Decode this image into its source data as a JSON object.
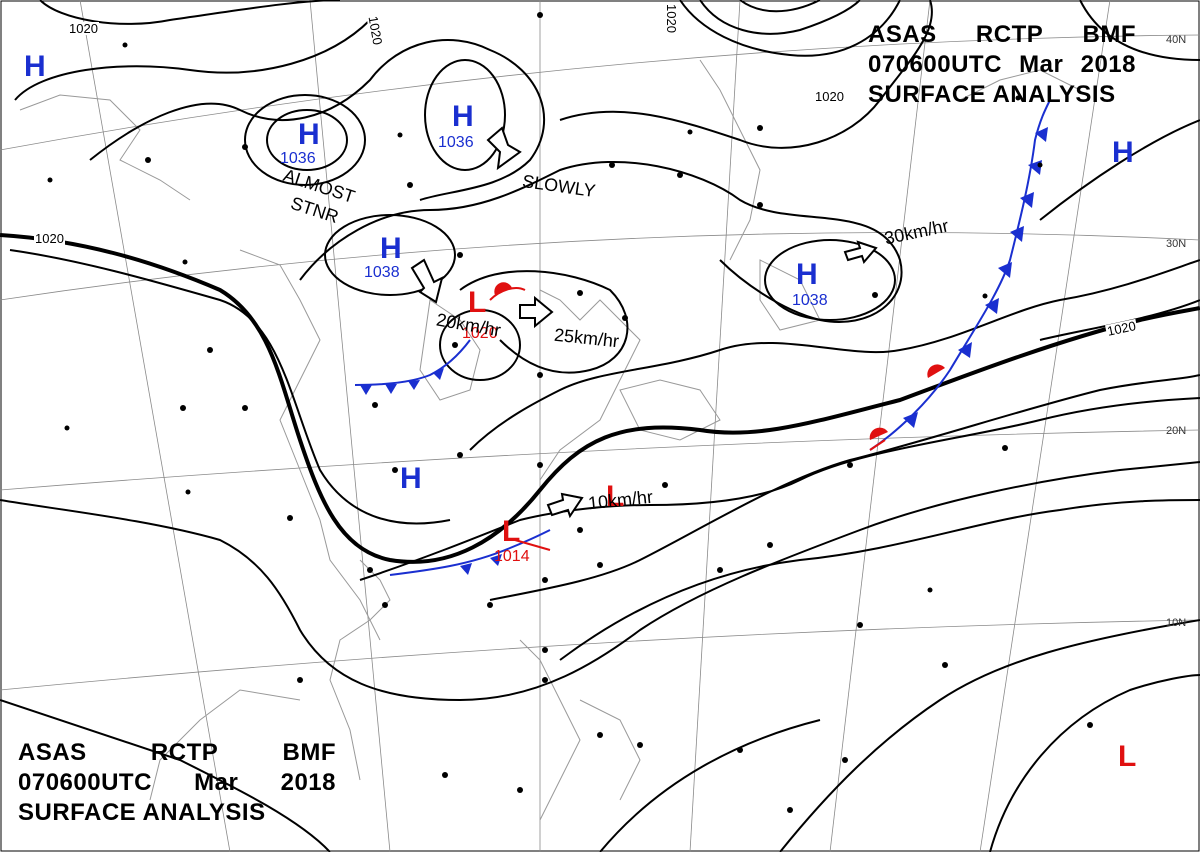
{
  "header_top": {
    "agency": "ASAS",
    "station": "RCTP",
    "code": "BMF",
    "time": "070600UTC",
    "month": "Mar",
    "year": "2018",
    "title": "SURFACE ANALYSIS"
  },
  "header_bottom": {
    "agency": "ASAS",
    "station": "RCTP",
    "code": "BMF",
    "time": "070600UTC",
    "month": "Mar",
    "year": "2018",
    "title": "SURFACE ANALYSIS"
  },
  "systems": [
    {
      "type": "H",
      "pressure": "1036"
    },
    {
      "type": "H",
      "pressure": "1036"
    },
    {
      "type": "H",
      "pressure": "1038"
    },
    {
      "type": "H",
      "pressure": "1038"
    },
    {
      "type": "H",
      "pressure": ""
    },
    {
      "type": "H",
      "pressure": ""
    },
    {
      "type": "L",
      "pressure": "1020"
    },
    {
      "type": "L",
      "pressure": "1014"
    },
    {
      "type": "L",
      "pressure": ""
    },
    {
      "type": "L",
      "pressure": ""
    }
  ],
  "movement_notes": {
    "almost": "ALMOST",
    "stnr": "STNR",
    "slowly": "SLOWLY",
    "speed_30": "30km/hr",
    "speed_20": "20km/hr",
    "speed_25": "25km/hr",
    "speed_10": "10km/hr"
  },
  "isobar_labels": [
    "1020",
    "1020",
    "1020",
    "1020",
    "1020",
    "1020"
  ],
  "latitude_labels": [
    "40N",
    "30N",
    "20N",
    "10N"
  ],
  "colors": {
    "high": "#1a2fd0",
    "low": "#e01010",
    "isobar": "#000000",
    "cold_front": "#1a2fd0",
    "warm_front": "#e01010"
  }
}
